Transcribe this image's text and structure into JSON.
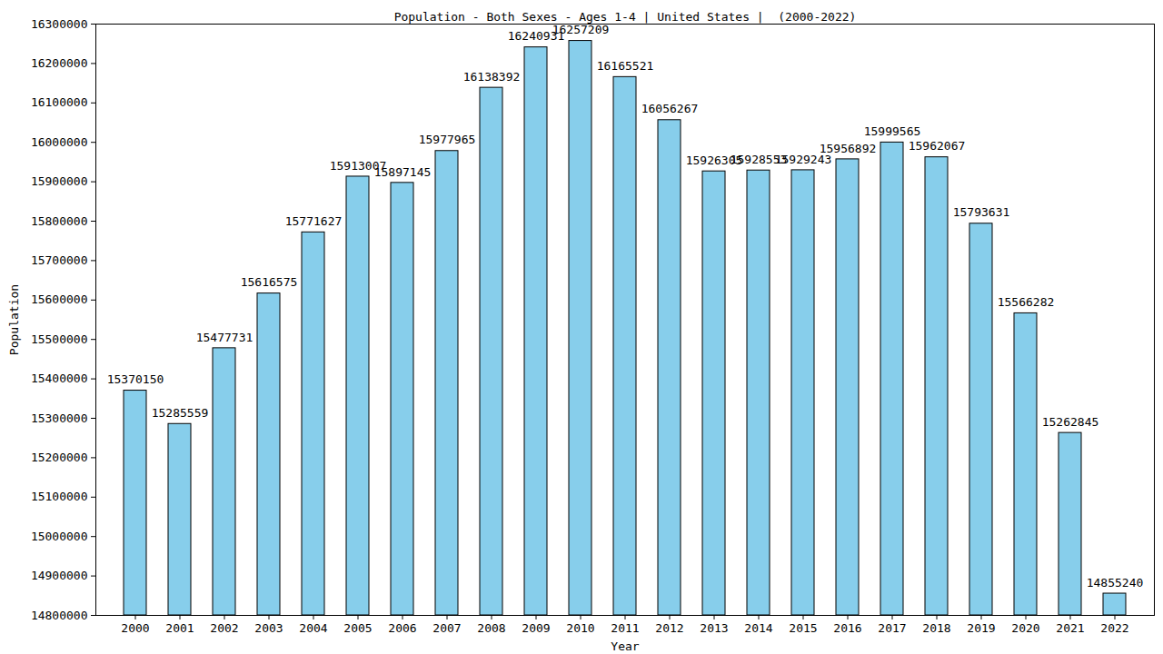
{
  "chart_data": {
    "type": "bar",
    "title": "Population - Both Sexes - Ages 1-4 | United States |  (2000-2022)",
    "x_label": "Year",
    "y_label": "Population",
    "categories": [
      "2000",
      "2001",
      "2002",
      "2003",
      "2004",
      "2005",
      "2006",
      "2007",
      "2008",
      "2009",
      "2010",
      "2011",
      "2012",
      "2013",
      "2014",
      "2015",
      "2016",
      "2017",
      "2018",
      "2019",
      "2020",
      "2021",
      "2022"
    ],
    "values": [
      15370150,
      15285559,
      15477731,
      15616575,
      15771627,
      15913007,
      15897145,
      15977965,
      16138392,
      16240931,
      16257209,
      16165521,
      16056267,
      15926305,
      15928553,
      15929243,
      15956892,
      15999565,
      15962067,
      15793631,
      15566282,
      15262845,
      14855240
    ],
    "color": "#87ceeb",
    "ylim": [
      14800000,
      16300000
    ],
    "yticks": [
      14800000,
      14900000,
      15000000,
      15100000,
      15200000,
      15300000,
      15400000,
      15500000,
      15600000,
      15700000,
      15800000,
      15900000,
      16000000,
      16100000,
      16200000,
      16300000
    ],
    "grid": false,
    "data_labels": true
  }
}
